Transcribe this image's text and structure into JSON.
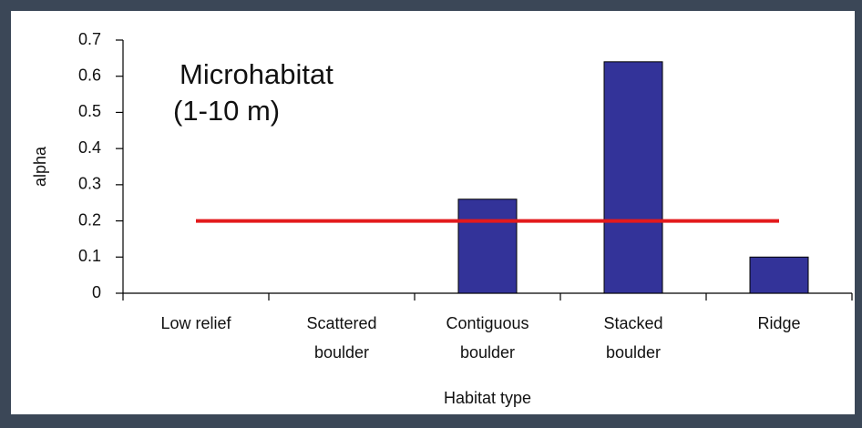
{
  "chart_data": {
    "type": "bar",
    "annotation": [
      "Microhabitat",
      "(1-10 m)"
    ],
    "y_label": "alpha",
    "x_label": "Habitat type",
    "categories": [
      [
        "Low relief"
      ],
      [
        "Scattered",
        "boulder"
      ],
      [
        "Contiguous",
        "boulder"
      ],
      [
        "Stacked",
        "boulder"
      ],
      [
        "Ridge"
      ]
    ],
    "values": [
      0,
      0,
      0.26,
      0.64,
      0.1
    ],
    "color": "#333399",
    "reference_line": {
      "value": 0.2,
      "color": "#e31a1c"
    },
    "ylim": [
      0,
      0.7
    ],
    "yticks": [
      0,
      0.1,
      0.2,
      0.3,
      0.4,
      0.5,
      0.6,
      0.7
    ]
  }
}
